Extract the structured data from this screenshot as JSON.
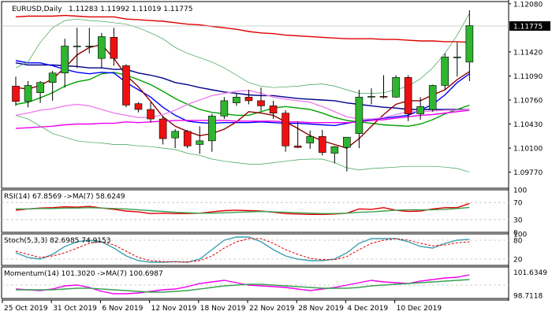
{
  "header": {
    "symbol": "EURUSD,Daily",
    "ohlc": "1.11283 1.11992 1.11019 1.11775"
  },
  "chart_data": [
    {
      "type": "candlestick",
      "title": "EURUSD,Daily",
      "ohlc_text": "1.11283 1.11992 1.11019 1.11775",
      "current_price": "1.11775",
      "ylim": [
        1.0955,
        1.1211
      ],
      "y_ticks": [
        "1.12080",
        "1.11420",
        "1.11090",
        "1.10760",
        "1.10430",
        "1.10100",
        "1.09770"
      ],
      "x_ticks": [
        {
          "label": "25 Oct 2019",
          "index": 0
        },
        {
          "label": "31 Oct 2019",
          "index": 4
        },
        {
          "label": "6 Nov 2019",
          "index": 8
        },
        {
          "label": "12 Nov 2019",
          "index": 12
        },
        {
          "label": "18 Nov 2019",
          "index": 16
        },
        {
          "label": "22 Nov 2019",
          "index": 20
        },
        {
          "label": "28 Nov 2019",
          "index": 24
        },
        {
          "label": "4 Dec 2019",
          "index": 28
        },
        {
          "label": "10 Dec 2019",
          "index": 32
        }
      ],
      "candles": [
        {
          "o": 1.1095,
          "h": 1.1108,
          "l": 1.1068,
          "c": 1.1074
        },
        {
          "o": 1.1074,
          "h": 1.1102,
          "l": 1.1066,
          "c": 1.1096
        },
        {
          "o": 1.1086,
          "h": 1.1102,
          "l": 1.1072,
          "c": 1.11
        },
        {
          "o": 1.11,
          "h": 1.1116,
          "l": 1.1075,
          "c": 1.1113
        },
        {
          "o": 1.1113,
          "h": 1.116,
          "l": 1.1093,
          "c": 1.115
        },
        {
          "o": 1.115,
          "h": 1.1175,
          "l": 1.112,
          "c": 1.115
        },
        {
          "o": 1.115,
          "h": 1.1175,
          "l": 1.114,
          "c": 1.115
        },
        {
          "o": 1.1133,
          "h": 1.1168,
          "l": 1.112,
          "c": 1.1163
        },
        {
          "o": 1.1162,
          "h": 1.1175,
          "l": 1.1123,
          "c": 1.1133
        },
        {
          "o": 1.1123,
          "h": 1.1125,
          "l": 1.1066,
          "c": 1.1069
        },
        {
          "o": 1.1071,
          "h": 1.1073,
          "l": 1.1059,
          "c": 1.1063
        },
        {
          "o": 1.1063,
          "h": 1.1073,
          "l": 1.1045,
          "c": 1.105
        },
        {
          "o": 1.105,
          "h": 1.1054,
          "l": 1.1015,
          "c": 1.1023
        },
        {
          "o": 1.1024,
          "h": 1.1036,
          "l": 1.101,
          "c": 1.1033
        },
        {
          "o": 1.1033,
          "h": 1.1035,
          "l": 1.101,
          "c": 1.1013
        },
        {
          "o": 1.1015,
          "h": 1.104,
          "l": 1.1002,
          "c": 1.102
        },
        {
          "o": 1.102,
          "h": 1.1057,
          "l": 1.1005,
          "c": 1.1054
        },
        {
          "o": 1.1054,
          "h": 1.108,
          "l": 1.105,
          "c": 1.1075
        },
        {
          "o": 1.1072,
          "h": 1.1085,
          "l": 1.1068,
          "c": 1.108
        },
        {
          "o": 1.108,
          "h": 1.109,
          "l": 1.107,
          "c": 1.1075
        },
        {
          "o": 1.1075,
          "h": 1.1093,
          "l": 1.1061,
          "c": 1.1068
        },
        {
          "o": 1.1068,
          "h": 1.1075,
          "l": 1.105,
          "c": 1.1058
        },
        {
          "o": 1.1058,
          "h": 1.1062,
          "l": 1.1005,
          "c": 1.1013
        },
        {
          "o": 1.1013,
          "h": 1.1046,
          "l": 1.101,
          "c": 1.1011
        },
        {
          "o": 1.1017,
          "h": 1.1034,
          "l": 1.1009,
          "c": 1.1026
        },
        {
          "o": 1.1026,
          "h": 1.1035,
          "l": 1.1,
          "c": 1.1004
        },
        {
          "o": 1.1003,
          "h": 1.1013,
          "l": 1.0989,
          "c": 1.1012
        },
        {
          "o": 1.1011,
          "h": 1.1025,
          "l": 1.0978,
          "c": 1.1025
        },
        {
          "o": 1.103,
          "h": 1.109,
          "l": 1.101,
          "c": 1.108
        },
        {
          "o": 1.108,
          "h": 1.1092,
          "l": 1.107,
          "c": 1.1081
        },
        {
          "o": 1.1081,
          "h": 1.111,
          "l": 1.1078,
          "c": 1.108
        },
        {
          "o": 1.108,
          "h": 1.111,
          "l": 1.1079,
          "c": 1.1107
        },
        {
          "o": 1.1107,
          "h": 1.111,
          "l": 1.1047,
          "c": 1.1057
        },
        {
          "o": 1.1057,
          "h": 1.108,
          "l": 1.1049,
          "c": 1.1067
        },
        {
          "o": 1.1063,
          "h": 1.1097,
          "l": 1.106,
          "c": 1.1096
        },
        {
          "o": 1.1096,
          "h": 1.114,
          "l": 1.109,
          "c": 1.1135
        },
        {
          "o": 1.1135,
          "h": 1.1155,
          "l": 1.1108,
          "c": 1.1135
        },
        {
          "o": 1.1128,
          "h": 1.1199,
          "l": 1.1102,
          "c": 1.1178
        }
      ],
      "overlays": [
        {
          "color": "#dd0000",
          "values": [
            1.119,
            1.1191,
            1.1191,
            1.1191,
            1.1192,
            1.1191,
            1.119,
            1.119,
            1.119,
            1.1187,
            1.1186,
            1.1185,
            1.1184,
            1.1182,
            1.118,
            1.1179,
            1.1177,
            1.1175,
            1.1173,
            1.117,
            1.1168,
            1.1167,
            1.1165,
            1.1164,
            1.1163,
            1.1162,
            1.1161,
            1.116,
            1.116,
            1.116,
            1.1159,
            1.1159,
            1.1158,
            1.1157,
            1.1157,
            1.1156,
            1.1156,
            1.1155
          ]
        },
        {
          "color": "#00008b",
          "values": [
            1.1127,
            1.1124,
            1.1124,
            1.1124,
            1.1123,
            1.1122,
            1.112,
            1.112,
            1.1118,
            1.1118,
            1.1113,
            1.111,
            1.1106,
            1.11,
            1.1097,
            1.1093,
            1.109,
            1.1087,
            1.1085,
            1.1083,
            1.1082,
            1.1082,
            1.108,
            1.1078,
            1.1077,
            1.1076,
            1.1075,
            1.1072,
            1.107,
            1.1068,
            1.1066,
            1.1065,
            1.1063,
            1.1063,
            1.1063,
            1.1063,
            1.1063,
            1.1063
          ]
        },
        {
          "color": "#00a000",
          "values": [
            1.107,
            1.1073,
            1.1079,
            1.1086,
            1.1095,
            1.1101,
            1.1104,
            1.1112,
            1.1114,
            1.111,
            1.1104,
            1.1097,
            1.1088,
            1.1078,
            1.107,
            1.1063,
            1.1059,
            1.1057,
            1.1055,
            1.1055,
            1.106,
            1.1065,
            1.1067,
            1.1065,
            1.1063,
            1.1058,
            1.1052,
            1.1048,
            1.1046,
            1.1044,
            1.1042,
            1.1041,
            1.104,
            1.1043,
            1.1049,
            1.1057,
            1.1063,
            1.1069
          ]
        },
        {
          "color": "#0000ff",
          "values": [
            1.113,
            1.1127,
            1.1127,
            1.1123,
            1.1118,
            1.1114,
            1.1112,
            1.1114,
            1.1113,
            1.11,
            1.109,
            1.108,
            1.1066,
            1.1055,
            1.1047,
            1.1045,
            1.1044,
            1.1045,
            1.1045,
            1.1045,
            1.1046,
            1.1045,
            1.1044,
            1.1044,
            1.1043,
            1.1042,
            1.1041,
            1.1044,
            1.1047,
            1.1049,
            1.1051,
            1.1053,
            1.1055,
            1.1062,
            1.107,
            1.1083,
            1.11,
            1.1112
          ]
        },
        {
          "color": "#8b0000",
          "values": [
            1.1093,
            1.1091,
            1.1096,
            1.1105,
            1.112,
            1.1138,
            1.1148,
            1.1152,
            1.1133,
            1.111,
            1.1094,
            1.1074,
            1.1053,
            1.104,
            1.1033,
            1.1027,
            1.103,
            1.1036,
            1.1046,
            1.106,
            1.1058,
            1.1055,
            1.1046,
            1.1037,
            1.1027,
            1.102,
            1.1015,
            1.101,
            1.1023,
            1.104,
            1.1056,
            1.107,
            1.1075,
            1.1075,
            1.1083,
            1.109,
            1.1104,
            1.1115
          ]
        },
        {
          "color": "#ee00ee",
          "values": [
            1.1037,
            1.1038,
            1.1039,
            1.104,
            1.1042,
            1.1043,
            1.1043,
            1.1044,
            1.1044,
            1.1046,
            1.1045,
            1.1046,
            1.1047,
            1.1048,
            1.1048,
            1.1048,
            1.1048,
            1.1048,
            1.1047,
            1.1047,
            1.1047,
            1.1047,
            1.1046,
            1.1046,
            1.1045,
            1.1045,
            1.1045,
            1.1045,
            1.1046,
            1.1048,
            1.1049,
            1.1051,
            1.1053,
            1.1055,
            1.1056,
            1.1058,
            1.106,
            1.1062
          ]
        },
        {
          "color": "#ee82ee",
          "values": [
            1.1055,
            1.1058,
            1.1062,
            1.1064,
            1.1068,
            1.107,
            1.1068,
            1.1063,
            1.1058,
            1.1055,
            1.1052,
            1.1052,
            1.1056,
            1.1062,
            1.107,
            1.1076,
            1.1082,
            1.1085,
            1.1088,
            1.1089,
            1.1085,
            1.108,
            1.1077,
            1.1075,
            1.1073,
            1.1067,
            1.106,
            1.1053,
            1.105,
            1.105,
            1.1052,
            1.1056,
            1.106,
            1.106,
            1.1061,
            1.1062,
            1.1062,
            1.1063
          ]
        },
        {
          "color": "#3aa050",
          "width": 0.7,
          "values": [
            1.112,
            1.1128,
            1.1155,
            1.1175,
            1.1185,
            1.1187,
            1.1185,
            1.1184,
            1.1182,
            1.118,
            1.1175,
            1.1168,
            1.116,
            1.1148,
            1.114,
            1.1134,
            1.1128,
            1.112,
            1.111,
            1.11,
            1.1095,
            1.1093,
            1.1094,
            1.1095,
            1.1097,
            1.1098,
            1.1095,
            1.109,
            1.1085,
            1.1085,
            1.1086,
            1.109,
            1.1095,
            1.1105,
            1.112,
            1.114,
            1.1165,
            1.1195
          ]
        },
        {
          "color": "#3aa050",
          "width": 0.7,
          "values": [
            1.1055,
            1.105,
            1.104,
            1.103,
            1.1025,
            1.102,
            1.1018,
            1.1017,
            1.1015,
            1.1015,
            1.1013,
            1.1012,
            1.101,
            1.1008,
            1.1003,
            1.1,
            1.0995,
            1.0992,
            1.099,
            1.0988,
            1.0988,
            1.099,
            1.0992,
            1.0994,
            1.0995,
            1.0995,
            1.099,
            1.0983,
            1.098,
            1.0982,
            1.0983,
            1.0984,
            1.0985,
            1.0985,
            1.0985,
            1.0984,
            1.0982,
            1.0977
          ]
        }
      ]
    },
    {
      "type": "line",
      "title": "RSI(14) 67.8569 ->MA(7) 58.6249",
      "ylim": [
        0,
        100
      ],
      "y_ticks": [
        "100",
        "70",
        "30",
        "0"
      ],
      "levels": [
        70,
        30
      ],
      "series": [
        {
          "name": "RSI(14)",
          "color": "#e00000",
          "values": [
            52,
            55,
            57,
            58,
            60,
            59,
            61,
            57,
            54,
            50,
            48,
            44,
            45,
            44,
            44,
            45,
            48,
            51,
            52,
            51,
            50,
            47,
            44,
            43,
            42,
            42,
            43,
            45,
            55,
            54,
            58,
            52,
            49,
            50,
            55,
            58,
            58,
            67.9
          ]
        },
        {
          "name": "MA(7)",
          "color": "#3aa050",
          "values": [
            55,
            55,
            56,
            56,
            57,
            57,
            58,
            57,
            56,
            55,
            53,
            51,
            49,
            47,
            46,
            45,
            45,
            46,
            47,
            48,
            49,
            48,
            47,
            46,
            45,
            44,
            44,
            45,
            47,
            48,
            50,
            52,
            53,
            53,
            53,
            54,
            56,
            58.6
          ]
        }
      ]
    },
    {
      "type": "line",
      "title": "Stoch(5,3,3) 82.6985 74.9153",
      "ylim": [
        0,
        100
      ],
      "y_ticks": [
        "100",
        "80",
        "20"
      ],
      "levels": [
        80,
        20
      ],
      "series": [
        {
          "name": "%K",
          "color": "#3aa0b0",
          "values": [
            40,
            25,
            20,
            35,
            60,
            75,
            80,
            75,
            55,
            30,
            15,
            10,
            10,
            12,
            10,
            20,
            50,
            80,
            90,
            90,
            75,
            50,
            30,
            20,
            15,
            15,
            20,
            40,
            70,
            85,
            85,
            85,
            75,
            60,
            55,
            70,
            80,
            82.7
          ]
        },
        {
          "name": "%D",
          "color": "#e00000",
          "dashed": true,
          "values": [
            45,
            35,
            25,
            30,
            40,
            55,
            70,
            75,
            65,
            45,
            25,
            15,
            12,
            11,
            11,
            15,
            30,
            55,
            75,
            85,
            85,
            70,
            50,
            35,
            22,
            18,
            18,
            28,
            50,
            70,
            80,
            85,
            80,
            70,
            62,
            65,
            72,
            74.9
          ]
        }
      ]
    },
    {
      "type": "line",
      "title": "Momentum(14) 101.3020 ->MA(7) 100.6987",
      "ylim": [
        98.3,
        102.3
      ],
      "y_ticks": [
        "101.6349",
        "98.7118"
      ],
      "levels": [
        100
      ],
      "series": [
        {
          "name": "Momentum(14)",
          "color": "#ee00ee",
          "values": [
            99.5,
            99.4,
            99.3,
            99.5,
            99.9,
            100.0,
            99.7,
            99.2,
            98.9,
            98.9,
            99.0,
            99.2,
            99.4,
            99.5,
            99.8,
            100.2,
            100.4,
            100.6,
            100.3,
            100.0,
            99.9,
            99.8,
            99.7,
            99.5,
            99.3,
            99.5,
            99.7,
            100.0,
            100.3,
            100.6,
            100.4,
            100.3,
            100.2,
            100.5,
            100.7,
            100.9,
            101.0,
            101.3
          ]
        },
        {
          "name": "MA(7)",
          "color": "#3aa050",
          "values": [
            99.4,
            99.4,
            99.4,
            99.4,
            99.5,
            99.6,
            99.6,
            99.5,
            99.4,
            99.3,
            99.2,
            99.1,
            99.1,
            99.2,
            99.3,
            99.5,
            99.7,
            99.9,
            100.0,
            100.1,
            100.1,
            100.0,
            99.9,
            99.8,
            99.7,
            99.6,
            99.6,
            99.6,
            99.7,
            99.9,
            100.0,
            100.1,
            100.2,
            100.3,
            100.4,
            100.5,
            100.6,
            100.7
          ]
        }
      ]
    }
  ],
  "colors": {
    "bull": "#2fb52f",
    "bear": "#ee1111",
    "separator": "#000000",
    "level_line": "#c0c0c0"
  }
}
